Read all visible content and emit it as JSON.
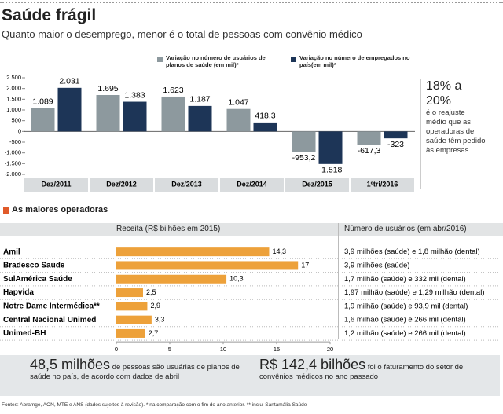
{
  "header": {
    "title": "Saúde frágil",
    "subtitle": "Quanto maior o desemprego, menor é o total de pessoas com convênio médico"
  },
  "chart_data": [
    {
      "type": "bar",
      "categories": [
        "Dez/2011",
        "Dez/2012",
        "Dez/2013",
        "Dez/2014",
        "Dez/2015",
        "1ºtri/2016"
      ],
      "series": [
        {
          "name": "Variação no número de usuários de planos de saúde (em mil)*",
          "color": "#8d999e",
          "values": [
            1089,
            1695,
            1623,
            1047,
            -953.2,
            -617.3
          ],
          "value_labels": [
            "1.089",
            "1.695",
            "1.623",
            "1.047",
            "-953,2",
            "-617,3"
          ]
        },
        {
          "name": "Variação no número de empregados no país(em mil)*",
          "color": "#1d3557",
          "values": [
            2031,
            1383,
            1187,
            418.3,
            -1518,
            -323
          ],
          "value_labels": [
            "2.031",
            "1.383",
            "1.187",
            "418,3",
            "-1.518",
            "-323"
          ]
        }
      ],
      "ylim": [
        -2000,
        2500
      ],
      "yticks": [
        {
          "value": 2500,
          "label": "2.500"
        },
        {
          "value": 2000,
          "label": "2.000"
        },
        {
          "value": 1500,
          "label": "1.500"
        },
        {
          "value": 1000,
          "label": "1.000"
        },
        500,
        0,
        -500,
        {
          "value": -1000,
          "label": "-1.000"
        },
        {
          "value": -1500,
          "label": "-1.500"
        },
        {
          "value": -2000,
          "label": "-2.000"
        }
      ]
    },
    {
      "type": "barh",
      "title": "Receita (R$ bilhões em  2015)",
      "categories": [
        "Amil",
        "Bradesco Saúde",
        "SulAmérica Saúde",
        "Hapvida",
        "Notre Dame Intermédica**",
        "Central Nacional Unimed",
        "Unimed-BH"
      ],
      "values": [
        14.3,
        17,
        10.3,
        2.5,
        2.9,
        3.3,
        2.7
      ],
      "value_labels": [
        "14,3",
        "17",
        "10,3",
        "2,5",
        "2,9",
        "3,3",
        "2,7"
      ],
      "color": "#eda13a",
      "xlim": [
        0,
        20
      ],
      "xticks": [
        0,
        5,
        10,
        15,
        20
      ]
    }
  ],
  "sidebar": {
    "headline": "18% a 20%",
    "text": "é o reajuste médio que as operadoras de saúde têm pedido às empresas"
  },
  "table": {
    "title": "As maiores operadoras",
    "users_title": "Número de usuários (em abr/2016)",
    "users": [
      "3,9 milhões (saúde)  e 1,8 milhão (dental)",
      "3,9 milhões (saúde)",
      "1,7 milhão (saúde) e 332 mil (dental)",
      "1,97 milhão (saúde) e 1,29 milhão (dental)",
      "1,9 milhão (saúde) e 93,9 mil (dental)",
      "1,6 milhão (saúde) e 266 mil (dental)",
      "1,2 milhão (saúde) e 266 mil (dental)"
    ]
  },
  "highlights": [
    {
      "figure": "48,5 milhões",
      "text": "de pessoas são usuárias de planos de saúde no país, de acordo com dados de abril"
    },
    {
      "figure": "R$ 142,4 bilhões",
      "text": "foi o faturamento do setor de convênios médicos no ano passado"
    }
  ],
  "source": "Fontes: Abramge, AON, MTE e ANS (dados sujeitos à revisão). * na comparação com o fim do ano anterior. ** inclui Santamália Saúde"
}
